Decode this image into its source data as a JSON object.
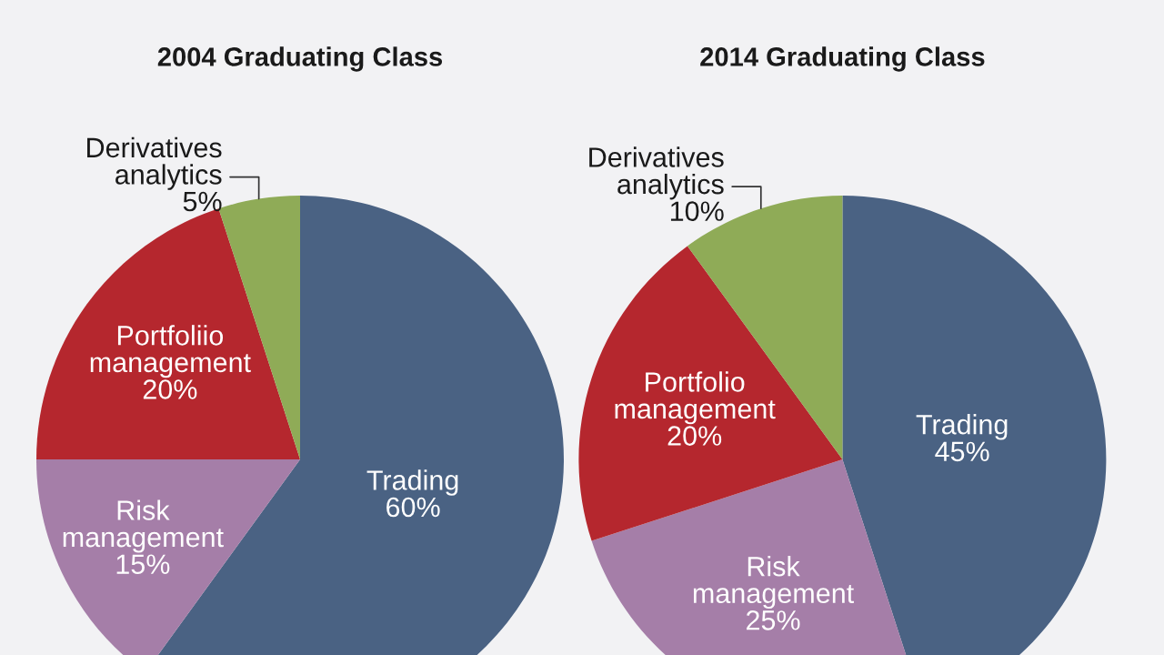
{
  "chart_data": [
    {
      "type": "pie",
      "title": "2004 Graduating Class",
      "categories": [
        "Trading",
        "Risk management",
        "Portfoliio management",
        "Derivatives analytics"
      ],
      "values": [
        60,
        15,
        20,
        5
      ],
      "value_labels": [
        "60%",
        "15%",
        "20%",
        "5%"
      ],
      "colors": [
        "#4a6283",
        "#a57ea8",
        "#b5272e",
        "#8fab57"
      ]
    },
    {
      "type": "pie",
      "title": "2014 Graduating Class",
      "categories": [
        "Trading",
        "Risk management",
        "Portfolio management",
        "Derivatives analytics"
      ],
      "values": [
        45,
        25,
        20,
        10
      ],
      "value_labels": [
        "45%",
        "25%",
        "20%",
        "10%"
      ],
      "colors": [
        "#4a6283",
        "#a57ea8",
        "#b5272e",
        "#8fab57"
      ]
    }
  ]
}
